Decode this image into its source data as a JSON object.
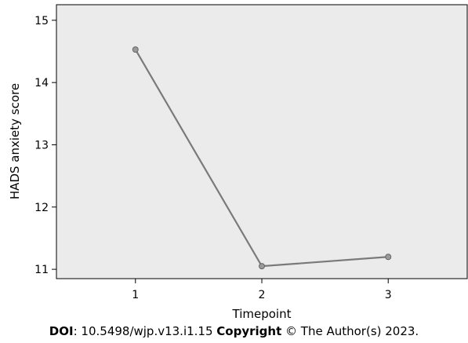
{
  "chart_data": {
    "type": "line",
    "xlabel": "Timepoint",
    "ylabel": "HADS anxiety score",
    "x": [
      1,
      2,
      3
    ],
    "xticks": [
      "1",
      "2",
      "3"
    ],
    "yticks": [
      "11",
      "12",
      "13",
      "14",
      "15"
    ],
    "xlim": [
      0.375,
      3.625
    ],
    "ylim": [
      10.85,
      15.25
    ],
    "series": [
      {
        "values": [
          14.53,
          11.05,
          11.2
        ]
      }
    ],
    "grid": false,
    "colors": {
      "plot_background": "#ebebeb",
      "line": "#7a7a7a",
      "marker": "#9a9a9a",
      "axis": "#000000"
    }
  },
  "footer": {
    "doi_label": "DOI",
    "doi_value": ": 10.5498/wjp.v13.i1.15 ",
    "copyright_label": "Copyright",
    "copyright_value": " © The Author(s) 2023."
  }
}
